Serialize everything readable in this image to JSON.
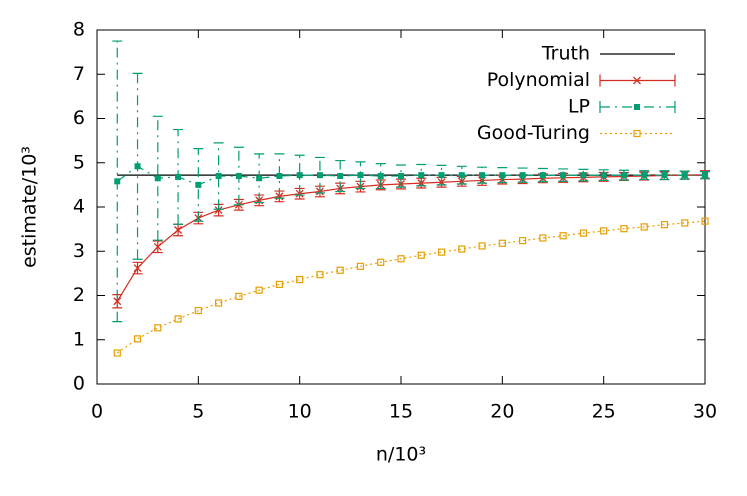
{
  "chart_data": {
    "type": "line",
    "xlabel": "n/10³",
    "ylabel": "estimate/10³",
    "x": [
      1,
      2,
      3,
      4,
      5,
      6,
      7,
      8,
      9,
      10,
      11,
      12,
      13,
      14,
      15,
      16,
      17,
      18,
      19,
      20,
      21,
      22,
      23,
      24,
      25,
      26,
      27,
      28,
      29,
      30
    ],
    "series": [
      {
        "name": "Truth",
        "color": "#000000",
        "style": "solid",
        "marker": "none",
        "values": [
          4.72,
          4.72,
          4.72,
          4.72,
          4.72,
          4.72,
          4.72,
          4.72,
          4.72,
          4.72,
          4.72,
          4.72,
          4.72,
          4.72,
          4.72,
          4.72,
          4.72,
          4.72,
          4.72,
          4.72,
          4.72,
          4.72,
          4.72,
          4.72,
          4.72,
          4.72,
          4.72,
          4.72,
          4.72,
          4.72
        ]
      },
      {
        "name": "Polynomial",
        "color": "#d62d20",
        "style": "solid",
        "marker": "cross",
        "values": [
          1.87,
          2.62,
          3.1,
          3.48,
          3.75,
          3.93,
          4.05,
          4.15,
          4.24,
          4.3,
          4.35,
          4.42,
          4.46,
          4.5,
          4.52,
          4.54,
          4.56,
          4.58,
          4.6,
          4.62,
          4.63,
          4.65,
          4.66,
          4.67,
          4.68,
          4.69,
          4.7,
          4.71,
          4.72,
          4.73
        ],
        "errors": [
          0.15,
          0.13,
          0.13,
          0.13,
          0.13,
          0.13,
          0.12,
          0.12,
          0.12,
          0.12,
          0.12,
          0.12,
          0.12,
          0.11,
          0.11,
          0.11,
          0.11,
          0.11,
          0.11,
          0.1,
          0.1,
          0.1,
          0.1,
          0.1,
          0.1,
          0.09,
          0.09,
          0.09,
          0.09,
          0.09
        ]
      },
      {
        "name": "LP",
        "color": "#009e73",
        "style": "dashdot",
        "marker": "filled-square",
        "values": [
          4.58,
          4.92,
          4.65,
          4.68,
          4.5,
          4.7,
          4.7,
          4.65,
          4.7,
          4.72,
          4.72,
          4.7,
          4.72,
          4.7,
          4.7,
          4.72,
          4.72,
          4.72,
          4.72,
          4.72,
          4.72,
          4.72,
          4.72,
          4.72,
          4.72,
          4.72,
          4.72,
          4.72,
          4.72,
          4.72
        ],
        "errors": [
          3.17,
          2.1,
          1.4,
          1.07,
          0.82,
          0.75,
          0.65,
          0.55,
          0.5,
          0.45,
          0.4,
          0.35,
          0.3,
          0.28,
          0.25,
          0.24,
          0.22,
          0.2,
          0.18,
          0.17,
          0.16,
          0.15,
          0.14,
          0.13,
          0.12,
          0.11,
          0.1,
          0.1,
          0.09,
          0.08
        ]
      },
      {
        "name": "Good-Turing",
        "color": "#e69f00",
        "style": "dotted",
        "marker": "open-square",
        "values": [
          0.7,
          1.02,
          1.27,
          1.47,
          1.66,
          1.83,
          1.98,
          2.12,
          2.25,
          2.36,
          2.47,
          2.57,
          2.66,
          2.75,
          2.83,
          2.91,
          2.98,
          3.05,
          3.12,
          3.18,
          3.24,
          3.3,
          3.35,
          3.41,
          3.46,
          3.51,
          3.55,
          3.6,
          3.64,
          3.68
        ]
      }
    ],
    "xlim": [
      0,
      30
    ],
    "xticks": [
      0,
      5,
      10,
      15,
      20,
      25,
      30
    ],
    "ylim": [
      0,
      8
    ],
    "yticks": [
      0,
      1,
      2,
      3,
      4,
      5,
      6,
      7,
      8
    ],
    "legend": "top-right"
  }
}
